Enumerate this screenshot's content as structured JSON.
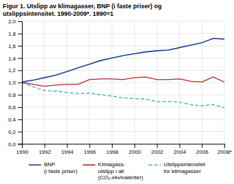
{
  "chart_data": {
    "type": "line",
    "title": "Figur 1. Utslipp av klimagasser, BNP (i faste priser) og\nutslippsintensitet. 1990-2009*. 1990=1",
    "x": [
      1990,
      1991,
      1992,
      1993,
      1994,
      1995,
      1996,
      1997,
      1998,
      1999,
      2000,
      2001,
      2002,
      2003,
      2004,
      2005,
      2006,
      2007,
      2008
    ],
    "series": [
      {
        "name": "BNP\n(i faste priser)",
        "color": "#1a3d9e",
        "line_style": "solid",
        "values": [
          1.01,
          1.04,
          1.08,
          1.12,
          1.18,
          1.24,
          1.3,
          1.36,
          1.4,
          1.44,
          1.47,
          1.5,
          1.52,
          1.53,
          1.57,
          1.61,
          1.65,
          1.72,
          1.71
        ]
      },
      {
        "name": "Klimagass-\nutslipp i alt\n(CO₂-ekvivalenter)",
        "color": "#b22222",
        "line_style": "solid",
        "values": [
          1.0,
          0.97,
          0.94,
          0.96,
          0.97,
          0.97,
          1.05,
          1.06,
          1.06,
          1.05,
          1.08,
          1.09,
          1.05,
          1.05,
          1.06,
          1.02,
          1.01,
          1.09,
          1.01
        ]
      },
      {
        "name": "Utslippsintensitet\nfor klimagasser",
        "color": "#2ab0b0",
        "line_style": "dashed",
        "values": [
          1.0,
          0.93,
          0.87,
          0.86,
          0.84,
          0.82,
          0.83,
          0.8,
          0.78,
          0.75,
          0.74,
          0.73,
          0.69,
          0.69,
          0.68,
          0.64,
          0.62,
          0.64,
          0.59
        ]
      }
    ],
    "xlim": [
      1990,
      2008
    ],
    "xticks": [
      1990,
      1992,
      1994,
      1996,
      1998,
      2000,
      2002,
      2004,
      2006,
      {
        "value": 2008,
        "label": "2008*"
      }
    ],
    "ylim": [
      0.0,
      2.0
    ],
    "yticks": [
      {
        "value": 0.0,
        "label": "0,0"
      },
      {
        "value": 0.2,
        "label": "0,2"
      },
      {
        "value": 0.4,
        "label": "0,4"
      },
      {
        "value": 0.6,
        "label": "0,6"
      },
      {
        "value": 0.8,
        "label": "0,8"
      },
      {
        "value": 1.0,
        "label": "1,0"
      },
      {
        "value": 1.2,
        "label": "1,2"
      },
      {
        "value": 1.4,
        "label": "1,4"
      },
      {
        "value": 1.6,
        "label": "1,6"
      },
      {
        "value": 1.8,
        "label": "1,8"
      },
      {
        "value": 2.0,
        "label": "2,0"
      }
    ],
    "grid": true,
    "legend": "bottom"
  }
}
